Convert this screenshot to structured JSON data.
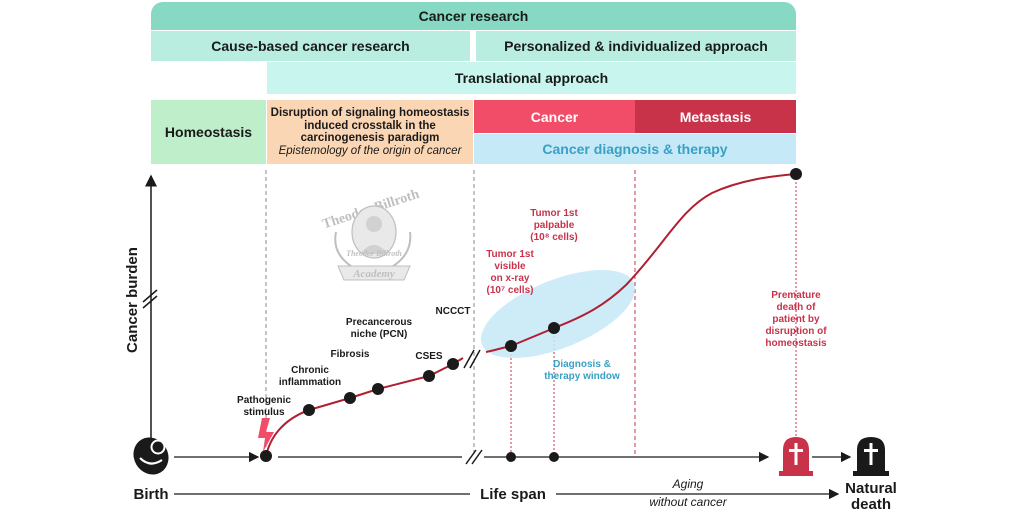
{
  "bands": {
    "research": "Cancer research",
    "cause": "Cause-based cancer research",
    "personalized": "Personalized & individualized approach",
    "translational": "Translational approach",
    "homeostasis": "Homeostasis",
    "disruption_lines": [
      "Disruption of signaling homeostasis",
      "induced crosstalk in the",
      "carcinogenesis paradigm"
    ],
    "disruption_sub": "Epistemology of the origin of cancer",
    "cancer": "Cancer",
    "metastasis": "Metastasis",
    "diagnosis": "Cancer diagnosis & therapy"
  },
  "axes": {
    "y_label": "Cancer burden",
    "x_label": "Life span",
    "birth": "Birth",
    "natural_death": [
      "Natural",
      "death"
    ],
    "aging": [
      "Aging",
      "without cancer"
    ]
  },
  "stages": {
    "pathogenic": [
      "Pathogenic",
      "stimulus"
    ],
    "chronic": [
      "Chronic",
      "inflammation"
    ],
    "fibrosis": "Fibrosis",
    "pcn": [
      "Precancerous",
      "niche (PCN)"
    ],
    "cses": "CSES",
    "ncccT": "NCCCT"
  },
  "tumor": {
    "visible": [
      "Tumor 1st",
      "visible",
      "on x-ray",
      "(10⁷ cells)"
    ],
    "palpable": [
      "Tumor 1st",
      "palpable",
      "(10⁸ cells)"
    ],
    "window": [
      "Diagnosis &",
      "therapy window"
    ],
    "premature": [
      "Premature",
      "death of",
      "patient by",
      "disruption of",
      "homeostasis"
    ]
  },
  "watermark": {
    "top": "Theodor Billroth",
    "bottom": "Academy",
    "signature": "Theodor Billroth"
  },
  "colors": {
    "curve": "#b11f33",
    "red": "#c8334a",
    "blue": "#3aa0c4",
    "ellipse": "#c5e9f7"
  }
}
